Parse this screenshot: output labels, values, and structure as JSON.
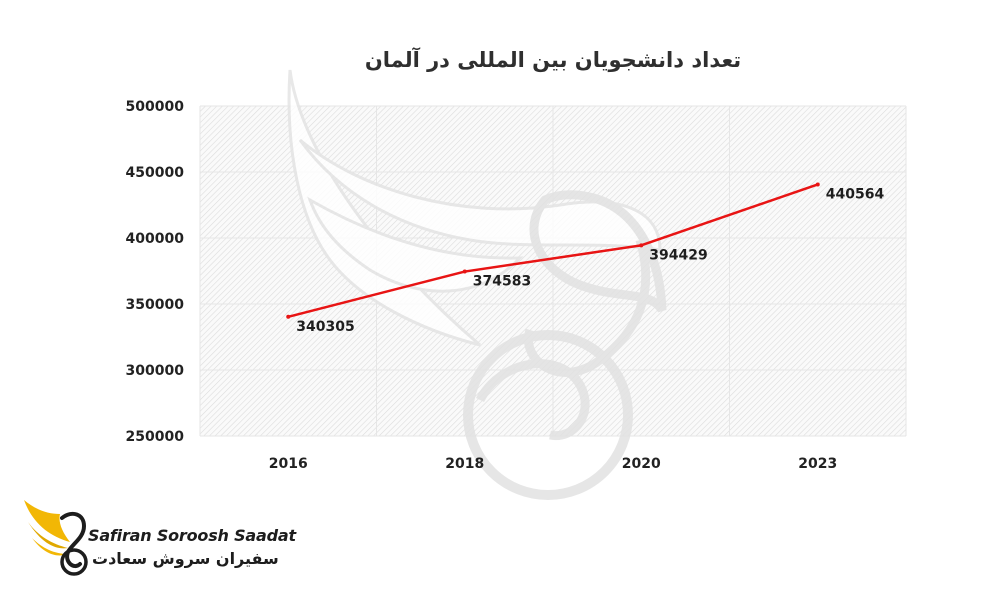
{
  "chart_data": {
    "type": "line",
    "title": "تعداد دانشجویان بین المللی در آلمان",
    "categories": [
      "2016",
      "2018",
      "2020",
      "2023"
    ],
    "values": [
      340305,
      374583,
      394429,
      440564
    ],
    "data_labels": [
      "340305",
      "374583",
      "394429",
      "440564"
    ],
    "ylim": [
      250000,
      500000
    ],
    "yticks": [
      "250000",
      "300000",
      "350000",
      "400000",
      "450000",
      "500000"
    ],
    "line_color": "#e81414",
    "grid": true,
    "legend": "none"
  },
  "brand": {
    "name_en": "Safiran Soroosh Saadat",
    "name_fa": "سفیران سروش سعادت",
    "accent": "#f2b705",
    "logo_icon": "wing-swan-icon"
  },
  "watermark": {
    "icon": "wing-swan-watermark-icon"
  }
}
